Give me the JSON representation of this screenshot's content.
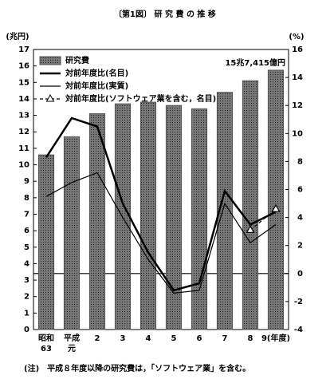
{
  "chart_data": {
    "type": "bar",
    "title": "〔第1図〕 研 究 費 の 推 移",
    "y_label": "(兆円)",
    "y2_label": "(%)",
    "categories": [
      [
        "昭和",
        "63"
      ],
      [
        "平成",
        "元"
      ],
      [
        "2"
      ],
      [
        "3"
      ],
      [
        "4"
      ],
      [
        "5"
      ],
      [
        "6"
      ],
      [
        "7"
      ],
      [
        "8"
      ],
      [
        "9(年度)"
      ]
    ],
    "ylim": [
      0,
      17
    ],
    "yticks": [
      0,
      1,
      2,
      3,
      4,
      5,
      6,
      7,
      8,
      9,
      10,
      11,
      12,
      13,
      14,
      15,
      16,
      17
    ],
    "y2lim": [
      -4,
      16
    ],
    "y2ticks": [
      -4,
      -2,
      0,
      2,
      4,
      6,
      8,
      10,
      12,
      14,
      16
    ],
    "grid": false,
    "legend": "upper left",
    "series": [
      {
        "name": "研究費",
        "type": "bar",
        "color": "#555555",
        "values": [
          10.6,
          11.7,
          13.1,
          13.7,
          13.8,
          13.6,
          13.4,
          14.4,
          15.1,
          15.7415
        ],
        "value_labels": [
          null,
          null,
          null,
          null,
          null,
          null,
          null,
          null,
          null,
          "15兆7,415億円"
        ]
      },
      {
        "name": "対前年度比(名目)",
        "type": "line",
        "axis": "y2",
        "color": "#000000",
        "width": 2.5,
        "values": [
          8.3,
          11.1,
          10.5,
          5.0,
          1.5,
          -1.2,
          -0.7,
          5.9,
          3.5,
          4.4
        ]
      },
      {
        "name": "対前年度比(実質)",
        "type": "line",
        "axis": "y2",
        "color": "#000000",
        "width": 1.2,
        "values": [
          5.5,
          6.5,
          7.2,
          4.0,
          1.0,
          -1.4,
          -1.2,
          5.0,
          2.2,
          3.5
        ]
      },
      {
        "name": "対前年度比(ソフトウェア業を含む，名目)",
        "type": "line",
        "axis": "y2",
        "color": "#000000",
        "width": 1.2,
        "dashed": true,
        "marker": "triangle",
        "values": [
          null,
          null,
          null,
          null,
          null,
          null,
          null,
          null,
          3.1,
          4.6
        ]
      }
    ],
    "note": "(注)　平成８年度以降の研究費は，「ソフトウェア業」を含む。"
  }
}
